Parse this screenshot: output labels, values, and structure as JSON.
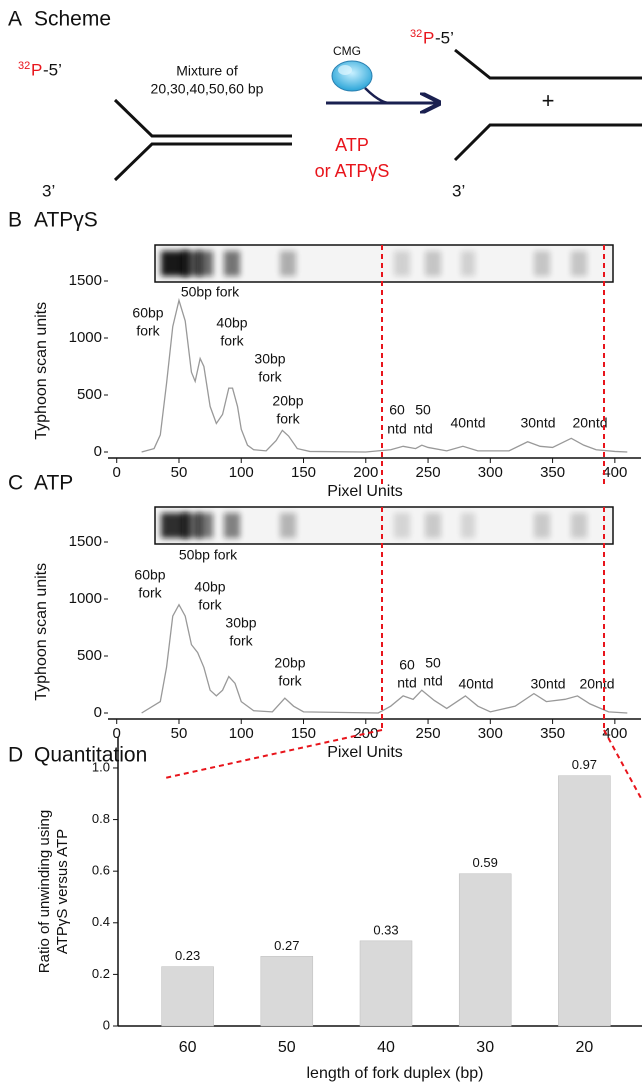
{
  "panel_labels": [
    "A",
    "B",
    "C",
    "D"
  ],
  "scheme": {
    "title": "Scheme",
    "left_label": {
      "superscript": "32",
      "element": "P",
      "end": "-5’"
    },
    "mixture": [
      "Mixture of",
      "20,30,40,50,60 bp"
    ],
    "left_3prime": "3’",
    "enzyme": "CMG",
    "conditions": [
      "ATP",
      "or ATPγS"
    ],
    "plus": "+",
    "right_label": {
      "superscript": "32",
      "element": "P",
      "end": "-5’"
    },
    "right_3prime": "3’"
  },
  "chart_data": [
    {
      "type": "line",
      "title": "ATPγS",
      "x_label": "Pixel Units",
      "y_label": "Typhoon scan units",
      "x": [
        20,
        30,
        35,
        40,
        45,
        50,
        55,
        60,
        63,
        67,
        70,
        75,
        80,
        85,
        90,
        93,
        97,
        100,
        105,
        110,
        120,
        128,
        133,
        138,
        145,
        155,
        200,
        220,
        230,
        240,
        245,
        250,
        265,
        278,
        290,
        315,
        330,
        340,
        350,
        365,
        375,
        385,
        400,
        410
      ],
      "series": [
        {
          "color": "#999999",
          "values": [
            0,
            30,
            150,
            600,
            1100,
            1330,
            1150,
            700,
            620,
            820,
            750,
            400,
            250,
            330,
            560,
            560,
            400,
            200,
            60,
            20,
            10,
            100,
            190,
            140,
            30,
            5,
            0,
            20,
            50,
            30,
            60,
            40,
            10,
            50,
            10,
            10,
            90,
            50,
            40,
            120,
            60,
            20,
            5,
            0
          ]
        }
      ],
      "annotations": [
        "60bp",
        "fork",
        "50bp fork",
        "40bp",
        "fork",
        "30bp",
        "fork",
        "20bp",
        "fork",
        "60",
        "ntd",
        "50",
        "ntd",
        "40ntd",
        "30ntd",
        "20ntd"
      ],
      "xlim": [
        -7,
        421
      ],
      "xticks": [
        0,
        50,
        100,
        150,
        200,
        250,
        300,
        350,
        400
      ],
      "ylim": [
        0,
        1600
      ],
      "yticks": [
        0,
        500,
        1000,
        1500
      ]
    },
    {
      "type": "line",
      "title": "ATP",
      "x_label": "Pixel Units",
      "y_label": "Typhoon scan units",
      "x": [
        20,
        35,
        40,
        45,
        50,
        55,
        60,
        65,
        70,
        75,
        80,
        85,
        90,
        95,
        100,
        110,
        125,
        135,
        142,
        150,
        210,
        220,
        230,
        238,
        245,
        255,
        265,
        280,
        290,
        300,
        320,
        335,
        345,
        360,
        370,
        380,
        395,
        410
      ],
      "series": [
        {
          "color": "#999999",
          "values": [
            0,
            100,
            400,
            850,
            950,
            850,
            600,
            530,
            400,
            200,
            150,
            200,
            320,
            260,
            100,
            20,
            10,
            130,
            60,
            10,
            0,
            60,
            150,
            120,
            200,
            110,
            40,
            150,
            60,
            10,
            60,
            170,
            100,
            120,
            150,
            80,
            10,
            0
          ]
        }
      ],
      "annotations": [
        "60bp",
        "fork",
        "50bp fork",
        "40bp",
        "fork",
        "30bp",
        "fork",
        "20bp",
        "fork",
        "60",
        "ntd",
        "50",
        "ntd",
        "40ntd",
        "30ntd",
        "20ntd"
      ],
      "xlim": [
        -7,
        421
      ],
      "xticks": [
        0,
        50,
        100,
        150,
        200,
        250,
        300,
        350,
        400
      ],
      "ylim": [
        0,
        1600
      ],
      "yticks": [
        0,
        500,
        1000,
        1500
      ]
    },
    {
      "type": "bar",
      "title": "Quantitation",
      "x_label": "length of fork duplex (bp)",
      "y_label": [
        "Ratio of unwinding using",
        "ATPγS versus ATP"
      ],
      "categories": [
        "60",
        "50",
        "40",
        "30",
        "20"
      ],
      "values": [
        0.23,
        0.27,
        0.33,
        0.59,
        0.97
      ],
      "color": "#d9d9d9",
      "ylim": [
        0,
        1.12
      ],
      "yticks": [
        0,
        0.2,
        0.4,
        0.6,
        0.8,
        {
          "value": 1,
          "label": "1.0"
        }
      ]
    }
  ]
}
